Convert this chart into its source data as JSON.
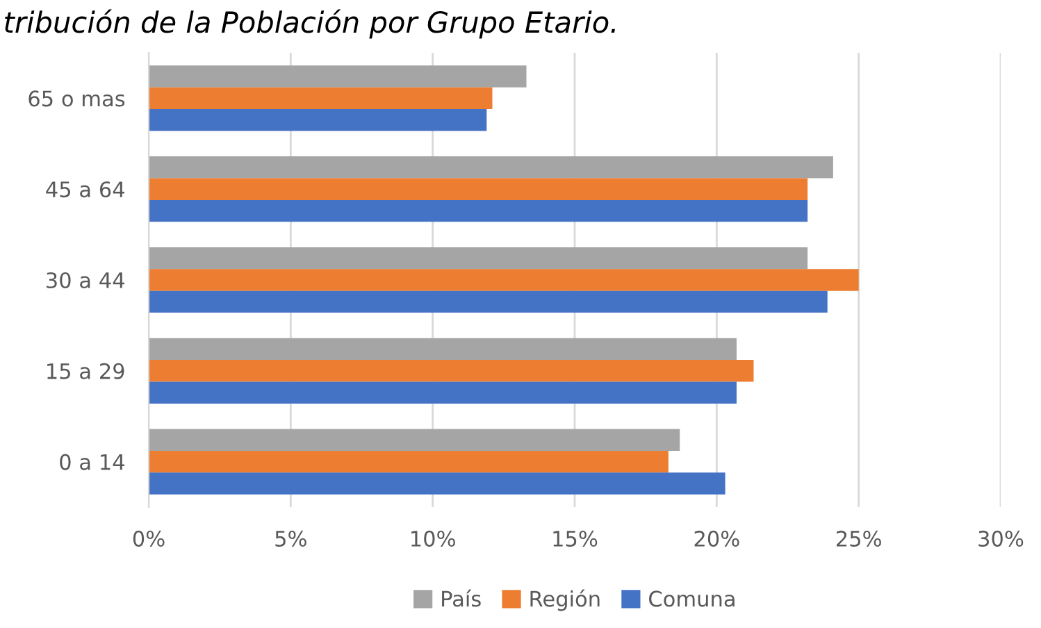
{
  "chart_data": {
    "type": "bar",
    "orientation": "horizontal",
    "title": "tribución de la Población por Grupo Etario.",
    "categories": [
      "65 o mas",
      "45 a 64",
      "30 a 44",
      "15 a 29",
      "0 a 14"
    ],
    "series": [
      {
        "name": "País",
        "color": "#a5a5a5",
        "values": [
          13.3,
          24.1,
          23.2,
          20.7,
          18.7
        ]
      },
      {
        "name": "Región",
        "color": "#ed7d31",
        "values": [
          12.1,
          23.2,
          25.0,
          21.3,
          18.3
        ]
      },
      {
        "name": "Comuna",
        "color": "#4472c4",
        "values": [
          11.9,
          23.2,
          23.9,
          20.7,
          20.3
        ]
      }
    ],
    "xlim": [
      0,
      30
    ],
    "xticks": [
      {
        "value": 0,
        "label": "0%"
      },
      {
        "value": 5,
        "label": "5%"
      },
      {
        "value": 10,
        "label": "10%"
      },
      {
        "value": 15,
        "label": "15%"
      },
      {
        "value": 20,
        "label": "20%"
      },
      {
        "value": 25,
        "label": "25%"
      },
      {
        "value": 30,
        "label": "30%"
      }
    ],
    "grid": "x",
    "legend": "bottom"
  }
}
